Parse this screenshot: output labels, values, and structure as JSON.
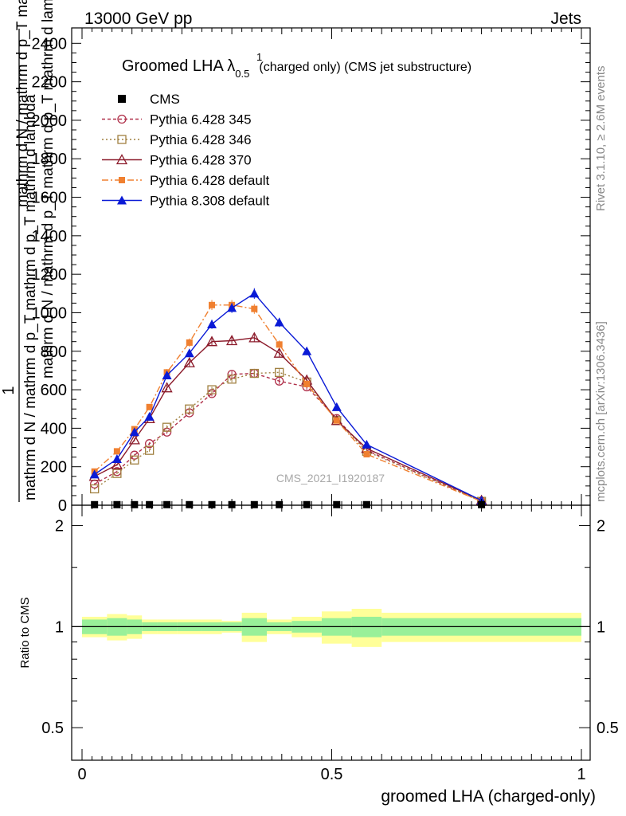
{
  "header": {
    "left": "13000 GeV pp",
    "right": "Jets"
  },
  "side_text": {
    "version": "Rivet 3.1.10, ≥ 2.6M events",
    "site": "mcplots.cern.ch [arXiv:1306.3436]"
  },
  "watermark": "CMS_2021_I1920187",
  "chart_data": {
    "type": "line",
    "title_main": "Groomed LHA λ",
    "title_sup": "1",
    "title_sub": "0.5",
    "title_rest": "(charged only) (CMS jet substructure)",
    "xlabel": "groomed LHA (charged-only)",
    "ylabel_top": "1",
    "ylabel_bottom": "mathrm d N / mathrm d p_T mathrm d p_T mathrm d lambda",
    "ylabel_stack": "mathrm d N / mathrm d p_T mathrm d p_T mathrm d lambda",
    "ratio_ylabel": "Ratio to CMS",
    "xlim": [
      -0.005,
      1.005
    ],
    "ylim": [
      0,
      2480
    ],
    "yticks": [
      0,
      200,
      400,
      600,
      800,
      1000,
      1200,
      1400,
      1600,
      1800,
      2000,
      2200,
      2400
    ],
    "ytick_labels": [
      "0",
      "200",
      "400",
      "600",
      "800",
      "1000",
      "1200",
      "1400",
      "1600",
      "1800",
      "2000",
      "2200",
      "2400"
    ],
    "xticks": [
      0,
      0.5,
      1
    ],
    "xtick_labels": [
      "0",
      "0.5",
      "1"
    ],
    "ratio_ylim": [
      0.4,
      2.3
    ],
    "ratio_yticks": [
      0.5,
      1,
      2
    ],
    "ratio_ytick_labels": [
      "0.5",
      "1",
      "2"
    ],
    "bin_edges": [
      0.0,
      0.05,
      0.09,
      0.12,
      0.15,
      0.19,
      0.24,
      0.28,
      0.32,
      0.37,
      0.42,
      0.48,
      0.54,
      0.6,
      1.0
    ],
    "x": [
      0.025,
      0.07,
      0.105,
      0.135,
      0.17,
      0.215,
      0.26,
      0.3,
      0.345,
      0.395,
      0.45,
      0.51,
      0.57,
      0.8
    ],
    "data": {
      "name": "CMS",
      "values": [
        3,
        3,
        3,
        3,
        3,
        3,
        3,
        3,
        3,
        3,
        3,
        3,
        3,
        3
      ],
      "band_inner": [
        0.05,
        0.06,
        0.05,
        0.03,
        0.03,
        0.03,
        0.03,
        0.03,
        0.06,
        0.03,
        0.04,
        0.06,
        0.07,
        0.06
      ],
      "band_outer": [
        0.07,
        0.09,
        0.08,
        0.05,
        0.05,
        0.05,
        0.05,
        0.04,
        0.1,
        0.05,
        0.07,
        0.11,
        0.13,
        0.1
      ]
    },
    "series": [
      {
        "name": "Pythia 6.428 345",
        "color": "#b0304a",
        "dash": "4,3",
        "marker": "circle-open",
        "values": [
          110,
          175,
          260,
          320,
          380,
          480,
          580,
          680,
          685,
          645,
          615,
          450,
          285,
          20
        ]
      },
      {
        "name": "Pythia 6.428 346",
        "color": "#a08040",
        "dash": "2,3",
        "marker": "square-open",
        "values": [
          85,
          165,
          235,
          285,
          405,
          500,
          600,
          655,
          685,
          690,
          640,
          440,
          280,
          20
        ]
      },
      {
        "name": "Pythia 6.428 370",
        "color": "#8b1a2a",
        "dash": "",
        "marker": "triangle-open",
        "values": [
          150,
          210,
          340,
          450,
          610,
          740,
          850,
          855,
          870,
          790,
          650,
          440,
          295,
          25
        ]
      },
      {
        "name": "Pythia 6.428 default",
        "color": "#f08030",
        "dash": "8,3,2,3",
        "marker": "square-filled",
        "values": [
          175,
          280,
          395,
          510,
          690,
          845,
          1040,
          1040,
          1020,
          835,
          630,
          440,
          265,
          20
        ]
      },
      {
        "name": "Pythia 8.308 default",
        "color": "#0a1ad6",
        "dash": "",
        "marker": "triangle-filled",
        "values": [
          160,
          240,
          380,
          460,
          675,
          790,
          940,
          1025,
          1100,
          950,
          800,
          510,
          315,
          25
        ]
      }
    ]
  }
}
